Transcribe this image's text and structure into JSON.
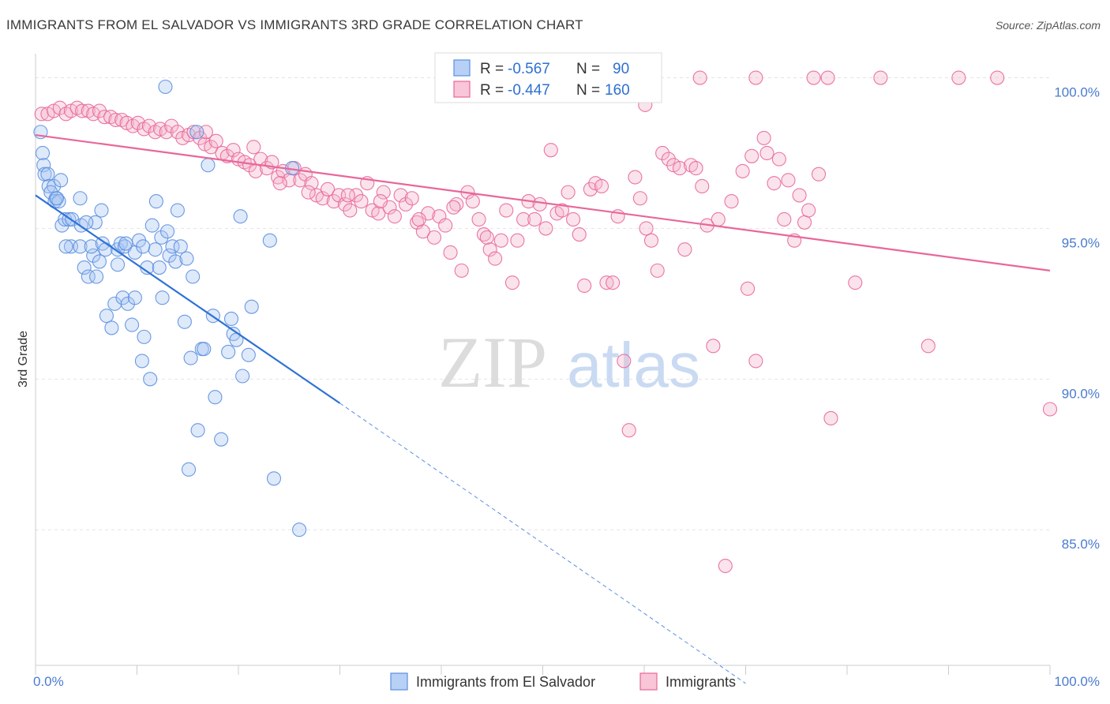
{
  "title": "IMMIGRANTS FROM EL SALVADOR VS IMMIGRANTS 3RD GRADE CORRELATION CHART",
  "source": "Source: ZipAtlas.com",
  "colors": {
    "blue": "#5b8fe0",
    "blue_fill": "#a9c6f2",
    "pink": "#e8679a",
    "pink_fill": "#f5b5cb"
  },
  "chart_data": {
    "type": "scatter",
    "ylabel": "3rd Grade",
    "xlim": [
      0,
      100
    ],
    "ylim": [
      80.5,
      100.8
    ],
    "x_tick_labels": [
      "0.0%",
      "100.0%"
    ],
    "y_ticks": [
      85,
      90,
      95,
      100
    ],
    "y_tick_labels": [
      "85.0%",
      "90.0%",
      "95.0%",
      "100.0%"
    ],
    "legend": [
      {
        "r_label": "R = ",
        "r_value": "-0.567",
        "n_label": "N = ",
        "n_value": "90"
      },
      {
        "r_label": "R = ",
        "r_value": "-0.447",
        "n_label": "N = ",
        "n_value": "160"
      }
    ],
    "series": [
      {
        "name": "Immigrants from El Salvador",
        "trend": {
          "x0": 0,
          "y0": 96.1,
          "x1": 30,
          "y1": 89.2,
          "dash_to_x": 70,
          "dash_to_y": 79.9
        },
        "points": [
          [
            0.5,
            98.2
          ],
          [
            0.7,
            97.5
          ],
          [
            0.8,
            97.1
          ],
          [
            0.9,
            96.8
          ],
          [
            1.2,
            96.8
          ],
          [
            1.3,
            96.4
          ],
          [
            1.8,
            96.4
          ],
          [
            2.0,
            96.0
          ],
          [
            2.5,
            96.6
          ],
          [
            1.5,
            96.2
          ],
          [
            1.9,
            95.9
          ],
          [
            2.3,
            95.9
          ],
          [
            2.6,
            95.1
          ],
          [
            2.9,
            95.3
          ],
          [
            3.3,
            95.3
          ],
          [
            3.6,
            95.3
          ],
          [
            4.4,
            96.0
          ],
          [
            4.5,
            95.1
          ],
          [
            3.5,
            94.4
          ],
          [
            4.4,
            94.4
          ],
          [
            4.8,
            93.7
          ],
          [
            5.2,
            93.4
          ],
          [
            5.7,
            94.1
          ],
          [
            5.5,
            94.4
          ],
          [
            5.9,
            95.2
          ],
          [
            6.3,
            93.9
          ],
          [
            6.0,
            93.4
          ],
          [
            6.5,
            95.6
          ],
          [
            6.6,
            94.5
          ],
          [
            6.9,
            94.3
          ],
          [
            7.0,
            92.1
          ],
          [
            7.5,
            91.7
          ],
          [
            7.8,
            92.5
          ],
          [
            8.1,
            93.8
          ],
          [
            8.1,
            94.3
          ],
          [
            8.4,
            94.5
          ],
          [
            8.8,
            94.4
          ],
          [
            8.6,
            92.7
          ],
          [
            9.1,
            92.5
          ],
          [
            9.5,
            91.8
          ],
          [
            9.8,
            94.2
          ],
          [
            9.8,
            92.7
          ],
          [
            10.2,
            94.6
          ],
          [
            10.5,
            90.6
          ],
          [
            10.7,
            91.4
          ],
          [
            11.0,
            93.7
          ],
          [
            11.3,
            90.0
          ],
          [
            11.5,
            95.1
          ],
          [
            11.8,
            94.3
          ],
          [
            11.9,
            95.9
          ],
          [
            12.2,
            93.7
          ],
          [
            12.4,
            94.7
          ],
          [
            12.5,
            92.7
          ],
          [
            13.0,
            94.9
          ],
          [
            13.2,
            94.1
          ],
          [
            13.5,
            94.4
          ],
          [
            13.8,
            93.9
          ],
          [
            14.0,
            95.6
          ],
          [
            14.3,
            94.4
          ],
          [
            14.7,
            91.9
          ],
          [
            14.9,
            94.0
          ],
          [
            15.1,
            87.0
          ],
          [
            15.3,
            90.7
          ],
          [
            15.5,
            93.4
          ],
          [
            16.0,
            88.3
          ],
          [
            16.4,
            91.0
          ],
          [
            16.6,
            91.0
          ],
          [
            17.0,
            97.1
          ],
          [
            17.5,
            92.1
          ],
          [
            17.7,
            89.4
          ],
          [
            18.3,
            88.0
          ],
          [
            19.0,
            90.9
          ],
          [
            19.3,
            92.0
          ],
          [
            19.5,
            91.5
          ],
          [
            19.8,
            91.3
          ],
          [
            20.2,
            95.4
          ],
          [
            20.4,
            90.1
          ],
          [
            21.0,
            90.8
          ],
          [
            21.3,
            92.4
          ],
          [
            23.1,
            94.6
          ],
          [
            23.5,
            86.7
          ],
          [
            26.0,
            85.0
          ],
          [
            12.8,
            99.7
          ],
          [
            15.9,
            98.2
          ],
          [
            25.3,
            97.0
          ],
          [
            8.9,
            94.5
          ],
          [
            3.0,
            94.4
          ],
          [
            5.0,
            95.2
          ],
          [
            10.6,
            94.4
          ],
          [
            2.1,
            96.0
          ]
        ]
      },
      {
        "name": "Immigrants",
        "trend": {
          "x0": 0,
          "y0": 98.1,
          "x1": 100,
          "y1": 93.6
        },
        "points": [
          [
            0.6,
            98.8
          ],
          [
            1.2,
            98.8
          ],
          [
            1.8,
            98.9
          ],
          [
            2.4,
            99.0
          ],
          [
            3.0,
            98.8
          ],
          [
            3.5,
            98.9
          ],
          [
            4.1,
            99.0
          ],
          [
            4.6,
            98.9
          ],
          [
            5.2,
            98.9
          ],
          [
            5.7,
            98.8
          ],
          [
            6.3,
            98.9
          ],
          [
            6.8,
            98.7
          ],
          [
            7.4,
            98.7
          ],
          [
            7.9,
            98.6
          ],
          [
            8.5,
            98.6
          ],
          [
            9.0,
            98.5
          ],
          [
            9.6,
            98.4
          ],
          [
            10.1,
            98.5
          ],
          [
            10.7,
            98.3
          ],
          [
            11.2,
            98.4
          ],
          [
            11.8,
            98.2
          ],
          [
            12.3,
            98.3
          ],
          [
            12.9,
            98.2
          ],
          [
            13.4,
            98.4
          ],
          [
            14.0,
            98.2
          ],
          [
            14.5,
            98.0
          ],
          [
            15.1,
            98.1
          ],
          [
            15.6,
            98.2
          ],
          [
            16.2,
            98.0
          ],
          [
            16.7,
            97.8
          ],
          [
            17.3,
            97.7
          ],
          [
            17.8,
            97.9
          ],
          [
            18.4,
            97.5
          ],
          [
            18.9,
            97.4
          ],
          [
            19.5,
            97.6
          ],
          [
            20.0,
            97.3
          ],
          [
            20.6,
            97.2
          ],
          [
            21.1,
            97.1
          ],
          [
            21.7,
            96.9
          ],
          [
            22.2,
            97.3
          ],
          [
            22.8,
            97.0
          ],
          [
            23.3,
            97.2
          ],
          [
            23.9,
            96.7
          ],
          [
            24.4,
            96.9
          ],
          [
            25.0,
            96.6
          ],
          [
            25.5,
            97.0
          ],
          [
            26.1,
            96.6
          ],
          [
            26.6,
            96.8
          ],
          [
            27.2,
            96.5
          ],
          [
            27.7,
            96.1
          ],
          [
            28.3,
            96.0
          ],
          [
            28.8,
            96.3
          ],
          [
            29.4,
            95.9
          ],
          [
            29.9,
            96.1
          ],
          [
            30.5,
            95.8
          ],
          [
            31.0,
            95.6
          ],
          [
            31.6,
            96.1
          ],
          [
            32.1,
            95.9
          ],
          [
            32.7,
            96.5
          ],
          [
            33.2,
            95.6
          ],
          [
            33.8,
            95.5
          ],
          [
            34.3,
            96.2
          ],
          [
            34.9,
            95.7
          ],
          [
            35.4,
            95.4
          ],
          [
            36.0,
            96.1
          ],
          [
            36.5,
            95.8
          ],
          [
            37.1,
            96.0
          ],
          [
            37.6,
            95.2
          ],
          [
            38.2,
            94.9
          ],
          [
            38.7,
            95.5
          ],
          [
            39.3,
            94.7
          ],
          [
            39.8,
            95.4
          ],
          [
            40.4,
            95.1
          ],
          [
            40.9,
            94.2
          ],
          [
            41.5,
            95.8
          ],
          [
            42.0,
            93.6
          ],
          [
            42.6,
            96.2
          ],
          [
            43.1,
            95.9
          ],
          [
            43.7,
            95.3
          ],
          [
            44.2,
            94.8
          ],
          [
            44.8,
            94.3
          ],
          [
            45.3,
            94.0
          ],
          [
            45.9,
            94.6
          ],
          [
            46.4,
            95.6
          ],
          [
            47.0,
            93.2
          ],
          [
            47.5,
            94.6
          ],
          [
            48.1,
            95.3
          ],
          [
            48.6,
            95.9
          ],
          [
            49.2,
            95.3
          ],
          [
            49.7,
            95.8
          ],
          [
            50.3,
            95.0
          ],
          [
            50.8,
            97.6
          ],
          [
            51.4,
            95.5
          ],
          [
            51.9,
            95.6
          ],
          [
            52.5,
            96.2
          ],
          [
            53.0,
            95.3
          ],
          [
            53.6,
            94.8
          ],
          [
            54.1,
            93.1
          ],
          [
            54.7,
            96.3
          ],
          [
            55.2,
            96.5
          ],
          [
            55.8,
            96.4
          ],
          [
            56.3,
            93.2
          ],
          [
            56.9,
            93.2
          ],
          [
            57.4,
            95.4
          ],
          [
            58.0,
            90.6
          ],
          [
            58.5,
            88.3
          ],
          [
            59.1,
            96.7
          ],
          [
            59.6,
            96.0
          ],
          [
            60.2,
            95.0
          ],
          [
            60.7,
            94.6
          ],
          [
            61.3,
            93.6
          ],
          [
            61.8,
            97.5
          ],
          [
            62.4,
            97.3
          ],
          [
            62.9,
            97.1
          ],
          [
            63.5,
            97.0
          ],
          [
            64.0,
            94.3
          ],
          [
            64.6,
            97.1
          ],
          [
            65.1,
            97.0
          ],
          [
            65.7,
            96.4
          ],
          [
            66.2,
            95.1
          ],
          [
            66.8,
            91.1
          ],
          [
            67.3,
            95.3
          ],
          [
            68.0,
            83.8
          ],
          [
            68.6,
            95.9
          ],
          [
            69.7,
            96.9
          ],
          [
            70.2,
            93.0
          ],
          [
            70.6,
            97.4
          ],
          [
            71.0,
            90.6
          ],
          [
            71.8,
            98.0
          ],
          [
            72.1,
            97.5
          ],
          [
            72.8,
            96.5
          ],
          [
            73.3,
            97.3
          ],
          [
            73.8,
            95.3
          ],
          [
            74.2,
            96.6
          ],
          [
            74.8,
            94.6
          ],
          [
            75.3,
            96.1
          ],
          [
            75.8,
            95.2
          ],
          [
            76.2,
            95.6
          ],
          [
            77.2,
            96.8
          ],
          [
            78.4,
            88.7
          ],
          [
            80.8,
            93.2
          ],
          [
            88.0,
            91.1
          ],
          [
            100.0,
            89.0
          ],
          [
            65.5,
            100.0
          ],
          [
            71.0,
            100.0
          ],
          [
            76.7,
            100.0
          ],
          [
            78.1,
            100.0
          ],
          [
            83.3,
            100.0
          ],
          [
            91.0,
            100.0
          ],
          [
            94.8,
            100.0
          ],
          [
            60.1,
            99.1
          ],
          [
            16.8,
            98.2
          ],
          [
            21.5,
            97.7
          ],
          [
            24.1,
            96.5
          ],
          [
            26.9,
            96.2
          ],
          [
            30.8,
            96.1
          ],
          [
            34.0,
            95.9
          ],
          [
            37.8,
            95.3
          ],
          [
            41.2,
            95.7
          ],
          [
            44.5,
            94.7
          ]
        ]
      }
    ]
  },
  "watermark": {
    "zip": "ZIP",
    "atlas": "atlas"
  }
}
